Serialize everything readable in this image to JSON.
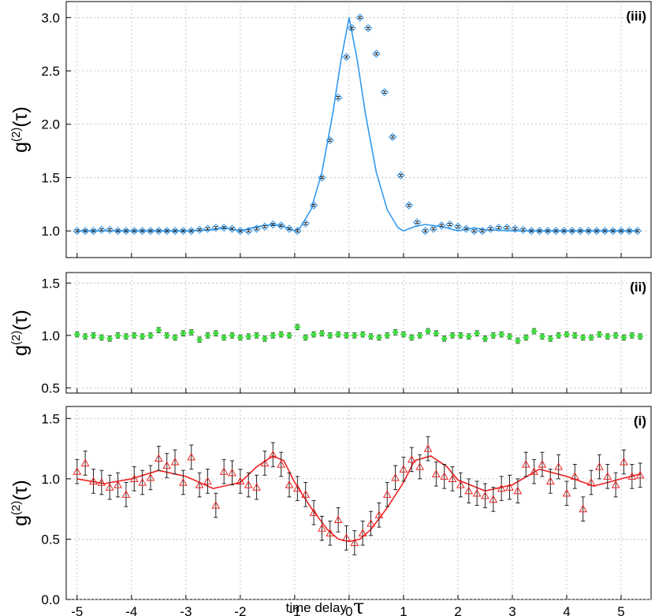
{
  "chart_data": [
    {
      "id": "iii",
      "type": "scatter",
      "panel_label": "(iii)",
      "ylabel": "g(2)(τ)",
      "ylabel_main": "g",
      "ylabel_sup": "(2)",
      "ylabel_arg": "(τ)",
      "ylim": [
        0.75,
        3.15
      ],
      "yticks": [
        1.0,
        1.5,
        2.0,
        2.5,
        3.0
      ],
      "ytick_labels": [
        "1.0",
        "1.5",
        "2.0",
        "2.5",
        "3.0"
      ],
      "grid": true,
      "marker": "diamond",
      "color": "#3399ee",
      "x": [
        -5.0,
        -4.85,
        -4.7,
        -4.55,
        -4.4,
        -4.25,
        -4.1,
        -3.95,
        -3.8,
        -3.65,
        -3.5,
        -3.35,
        -3.2,
        -3.05,
        -2.9,
        -2.75,
        -2.6,
        -2.45,
        -2.3,
        -2.15,
        -2.0,
        -1.85,
        -1.7,
        -1.55,
        -1.4,
        -1.25,
        -1.1,
        -0.95,
        -0.8,
        -0.65,
        -0.5,
        -0.35,
        -0.2,
        -0.05,
        0.05,
        0.2,
        0.35,
        0.5,
        0.65,
        0.8,
        0.95,
        1.1,
        1.25,
        1.4,
        1.55,
        1.7,
        1.85,
        2.0,
        2.15,
        2.3,
        2.45,
        2.6,
        2.75,
        2.9,
        3.05,
        3.2,
        3.35,
        3.5,
        3.65,
        3.8,
        3.95,
        4.1,
        4.25,
        4.4,
        4.55,
        4.7,
        4.85,
        5.0,
        5.15,
        5.3
      ],
      "y": [
        1.0,
        1.0,
        1.0,
        1.01,
        1.01,
        1.0,
        1.0,
        1.0,
        1.0,
        1.0,
        1.0,
        1.0,
        1.0,
        1.0,
        1.0,
        1.01,
        1.02,
        1.03,
        1.03,
        1.02,
        1.0,
        1.0,
        1.02,
        1.04,
        1.06,
        1.05,
        1.02,
        1.0,
        1.07,
        1.24,
        1.5,
        1.85,
        2.25,
        2.63,
        2.9,
        3.0,
        2.9,
        2.66,
        2.3,
        1.88,
        1.52,
        1.24,
        1.08,
        1.0,
        1.02,
        1.05,
        1.06,
        1.04,
        1.02,
        1.0,
        1.0,
        1.02,
        1.03,
        1.03,
        1.02,
        1.01,
        1.0,
        1.0,
        1.0,
        1.0,
        1.0,
        1.0,
        1.0,
        1.0,
        1.0,
        1.0,
        1.0,
        1.0,
        1.0,
        1.0
      ],
      "err": 0.01,
      "fit_x": [
        -5.0,
        -4.5,
        -4.0,
        -3.5,
        -3.0,
        -2.5,
        -2.3,
        -2.0,
        -1.7,
        -1.4,
        -1.2,
        -1.0,
        -0.9,
        -0.7,
        -0.5,
        -0.3,
        -0.15,
        0.0,
        0.15,
        0.3,
        0.5,
        0.7,
        0.9,
        1.0,
        1.2,
        1.4,
        1.7,
        2.0,
        2.3,
        2.5,
        3.0,
        3.5,
        4.0,
        4.5,
        5.0,
        5.3
      ],
      "fit_y": [
        1.0,
        1.0,
        1.0,
        1.0,
        1.0,
        1.01,
        1.03,
        1.0,
        1.04,
        1.06,
        1.04,
        1.0,
        1.03,
        1.2,
        1.55,
        2.1,
        2.6,
        3.0,
        2.6,
        2.1,
        1.55,
        1.2,
        1.03,
        1.0,
        1.04,
        1.06,
        1.04,
        1.0,
        1.03,
        1.01,
        1.0,
        1.0,
        1.0,
        1.0,
        1.0,
        1.0
      ]
    },
    {
      "id": "ii",
      "type": "scatter",
      "panel_label": "(ii)",
      "ylabel": "g(2)(τ)",
      "ylabel_main": "g",
      "ylabel_sup": "(2)",
      "ylabel_arg": "(τ)",
      "ylim": [
        0.45,
        1.6
      ],
      "yticks": [
        0.5,
        1.0,
        1.5
      ],
      "ytick_labels": [
        "0.5",
        "1.0",
        "1.5"
      ],
      "grid": true,
      "marker": "diamond",
      "color": "#33dd33",
      "x": [
        -5.0,
        -4.85,
        -4.7,
        -4.55,
        -4.4,
        -4.25,
        -4.1,
        -3.95,
        -3.8,
        -3.65,
        -3.5,
        -3.35,
        -3.2,
        -3.05,
        -2.9,
        -2.75,
        -2.6,
        -2.45,
        -2.3,
        -2.15,
        -2.0,
        -1.85,
        -1.7,
        -1.55,
        -1.4,
        -1.25,
        -1.1,
        -0.95,
        -0.8,
        -0.65,
        -0.5,
        -0.35,
        -0.2,
        -0.05,
        0.1,
        0.25,
        0.4,
        0.55,
        0.7,
        0.85,
        1.0,
        1.15,
        1.3,
        1.45,
        1.6,
        1.75,
        1.9,
        2.05,
        2.2,
        2.35,
        2.5,
        2.65,
        2.8,
        2.95,
        3.1,
        3.25,
        3.4,
        3.55,
        3.7,
        3.85,
        4.0,
        4.15,
        4.3,
        4.45,
        4.6,
        4.75,
        4.9,
        5.05,
        5.2,
        5.35
      ],
      "y": [
        1.01,
        0.99,
        1.0,
        0.98,
        0.97,
        1.0,
        0.99,
        1.0,
        0.99,
        1.0,
        1.05,
        1.0,
        0.98,
        1.02,
        1.03,
        0.96,
        1.0,
        1.02,
        0.98,
        1.0,
        0.98,
        0.99,
        1.0,
        0.97,
        1.0,
        1.01,
        1.0,
        1.08,
        0.98,
        1.01,
        1.02,
        1.0,
        1.01,
        1.0,
        1.0,
        1.01,
        0.99,
        0.98,
        1.0,
        1.03,
        1.01,
        0.98,
        1.0,
        1.04,
        1.02,
        0.97,
        1.0,
        1.0,
        0.99,
        1.02,
        0.97,
        1.0,
        1.01,
        0.99,
        0.95,
        0.98,
        1.04,
        0.99,
        0.97,
        1.0,
        1.01,
        1.0,
        0.98,
        0.98,
        1.01,
        0.99,
        1.0,
        0.98,
        1.0,
        0.99
      ],
      "err": 0.025
    },
    {
      "id": "i",
      "type": "scatter",
      "panel_label": "(i)",
      "ylabel": "g(2)(τ)",
      "ylabel_main": "g",
      "ylabel_sup": "(2)",
      "ylabel_arg": "(τ)",
      "ylim": [
        0.0,
        1.6
      ],
      "yticks": [
        0.0,
        0.5,
        1.0,
        1.5
      ],
      "ytick_labels": [
        "0.0",
        "0.5",
        "1.0",
        "1.5"
      ],
      "grid": true,
      "marker": "triangle",
      "color": "#ee2222",
      "xlabel": "time delay",
      "xlabel_symbol": "τ",
      "xlim": [
        -5.2,
        5.55
      ],
      "xticks": [
        -5,
        -4,
        -3,
        -2,
        -1,
        0,
        1,
        2,
        3,
        4,
        5
      ],
      "xtick_labels": [
        "-5",
        "-4",
        "-3",
        "-2",
        "-1",
        "0",
        "1",
        "2",
        "3",
        "4",
        "5"
      ],
      "x": [
        -5.0,
        -4.85,
        -4.7,
        -4.55,
        -4.4,
        -4.25,
        -4.1,
        -3.95,
        -3.8,
        -3.65,
        -3.5,
        -3.35,
        -3.2,
        -3.05,
        -2.9,
        -2.75,
        -2.6,
        -2.45,
        -2.3,
        -2.15,
        -2.0,
        -1.85,
        -1.7,
        -1.55,
        -1.4,
        -1.25,
        -1.1,
        -0.95,
        -0.8,
        -0.65,
        -0.5,
        -0.35,
        -0.2,
        -0.05,
        0.1,
        0.25,
        0.4,
        0.55,
        0.7,
        0.85,
        1.0,
        1.15,
        1.3,
        1.45,
        1.6,
        1.75,
        1.9,
        2.05,
        2.2,
        2.35,
        2.5,
        2.65,
        2.8,
        2.95,
        3.1,
        3.25,
        3.4,
        3.55,
        3.7,
        3.85,
        4.0,
        4.15,
        4.3,
        4.45,
        4.6,
        4.75,
        4.9,
        5.05,
        5.2,
        5.35
      ],
      "y": [
        1.06,
        1.13,
        0.98,
        0.97,
        0.93,
        0.95,
        0.87,
        1.0,
        0.97,
        1.01,
        1.17,
        1.11,
        1.14,
        0.97,
        1.18,
        0.95,
        0.98,
        0.78,
        1.06,
        1.05,
        0.98,
        0.95,
        0.93,
        1.13,
        1.2,
        1.12,
        0.95,
        0.92,
        0.87,
        0.72,
        0.59,
        0.55,
        0.66,
        0.51,
        0.47,
        0.55,
        0.63,
        0.7,
        0.87,
        1.01,
        1.08,
        1.16,
        1.1,
        1.25,
        1.04,
        1.02,
        1.0,
        0.95,
        0.9,
        0.88,
        0.86,
        0.83,
        0.92,
        0.93,
        0.9,
        1.12,
        1.06,
        1.12,
        0.98,
        1.1,
        0.88,
        1.02,
        0.75,
        0.97,
        1.1,
        1.02,
        0.95,
        1.14,
        1.02,
        1.03
      ],
      "err": 0.1,
      "fit_x": [
        -5.0,
        -4.5,
        -4.0,
        -3.5,
        -3.0,
        -2.5,
        -2.0,
        -1.7,
        -1.4,
        -1.2,
        -1.0,
        -0.7,
        -0.4,
        -0.2,
        0.0,
        0.2,
        0.4,
        0.7,
        1.0,
        1.2,
        1.5,
        1.8,
        2.0,
        2.5,
        3.0,
        3.5,
        4.0,
        4.5,
        5.0,
        5.35
      ],
      "fit_y": [
        1.0,
        0.96,
        1.0,
        1.07,
        1.02,
        0.92,
        0.97,
        1.1,
        1.19,
        1.15,
        0.97,
        0.76,
        0.58,
        0.5,
        0.48,
        0.5,
        0.58,
        0.76,
        0.97,
        1.15,
        1.19,
        1.1,
        0.99,
        0.9,
        0.95,
        1.08,
        1.02,
        0.94,
        1.0,
        1.04
      ]
    }
  ]
}
